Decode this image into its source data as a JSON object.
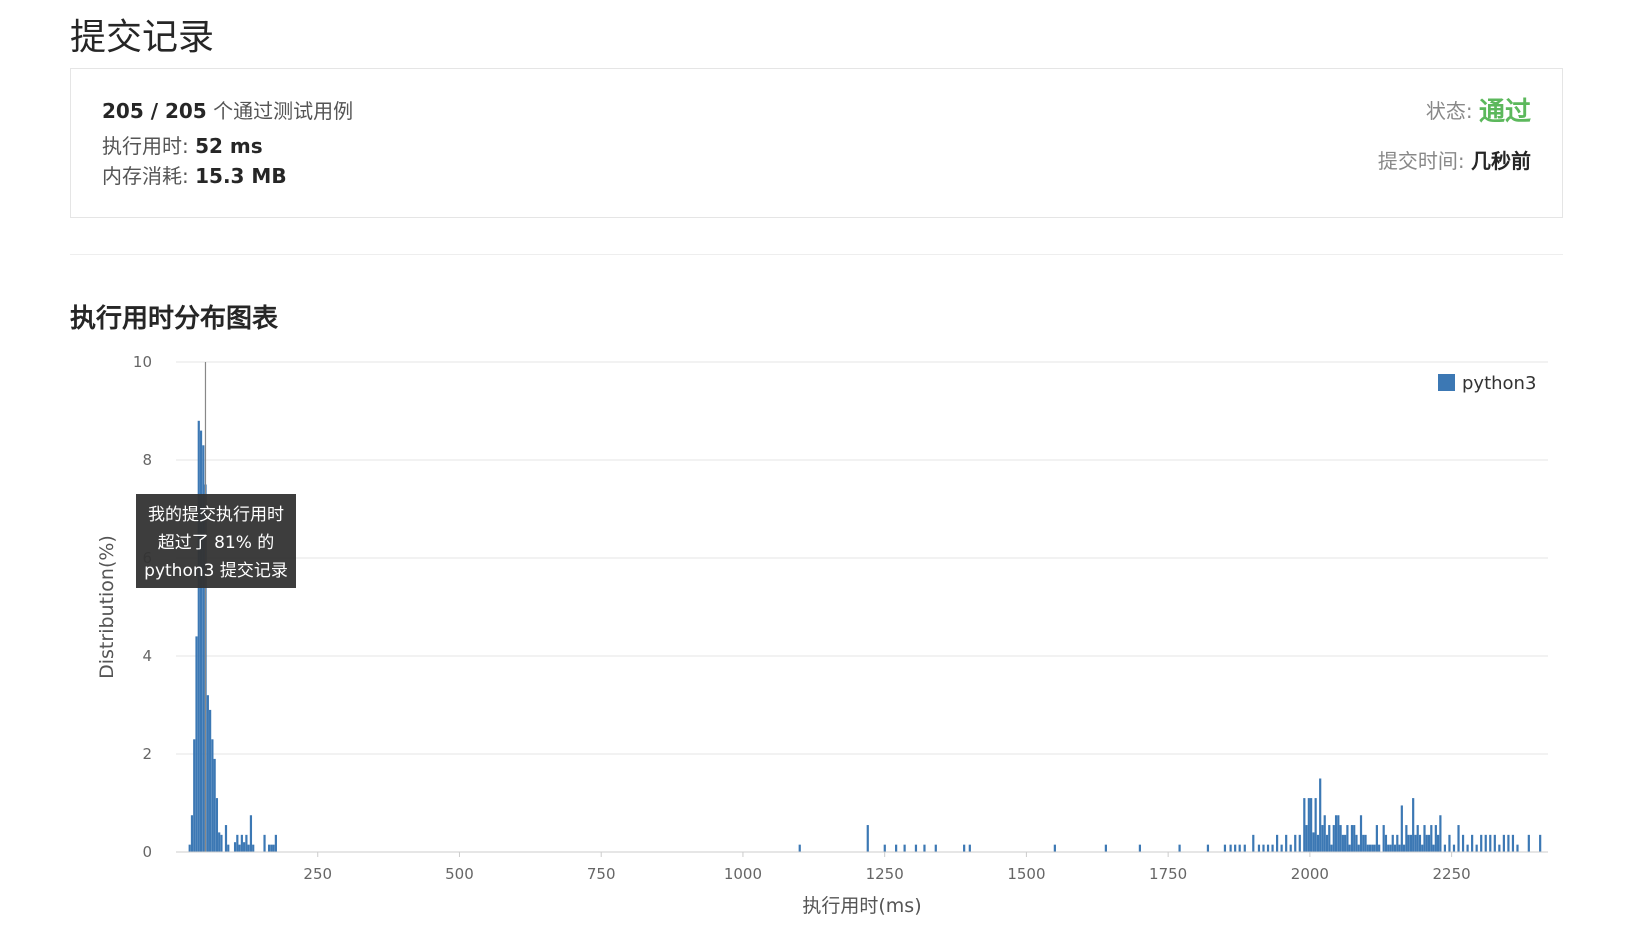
{
  "page": {
    "title": "提交记录",
    "section_title": "执行用时分布图表"
  },
  "result": {
    "cases_passed": "205 / 205",
    "cases_suffix": "个通过测试用例",
    "runtime_label": "执行用时:",
    "runtime_value": "52 ms",
    "memory_label": "内存消耗:",
    "memory_value": "15.3 MB",
    "status_label": "状态:",
    "status_value": "通过",
    "submit_time_label": "提交时间:",
    "submit_time_value": "几秒前"
  },
  "colors": {
    "bar": "#3c78b4",
    "status_pass": "#5cb85c",
    "grid": "#e6e6e6",
    "tooltip_bg": "#333333"
  },
  "chart_data": {
    "type": "bar",
    "xlabel": "执行用时(ms)",
    "ylabel": "Distribution(%)",
    "xlim": [
      0,
      2420
    ],
    "ylim": [
      0,
      10
    ],
    "x_ticks": [
      250,
      500,
      750,
      1000,
      1250,
      1500,
      1750,
      2000,
      2250
    ],
    "y_ticks": [
      0,
      2,
      4,
      6,
      8,
      10
    ],
    "grid": true,
    "legend_position": "top-right",
    "highlight_x": 52,
    "tooltip": [
      "我的提交执行用时",
      "超过了 81% 的",
      "python3 提交记录"
    ],
    "series": [
      {
        "name": "python3",
        "points": [
          [
            24,
            0.15
          ],
          [
            28,
            0.75
          ],
          [
            32,
            2.3
          ],
          [
            36,
            4.4
          ],
          [
            40,
            8.8
          ],
          [
            44,
            8.6
          ],
          [
            48,
            8.3
          ],
          [
            52,
            7.5
          ],
          [
            56,
            3.2
          ],
          [
            60,
            2.9
          ],
          [
            64,
            2.3
          ],
          [
            68,
            1.9
          ],
          [
            72,
            1.1
          ],
          [
            76,
            0.4
          ],
          [
            80,
            0.35
          ],
          [
            88,
            0.55
          ],
          [
            92,
            0.15
          ],
          [
            104,
            0.2
          ],
          [
            108,
            0.35
          ],
          [
            112,
            0.15
          ],
          [
            116,
            0.35
          ],
          [
            120,
            0.2
          ],
          [
            124,
            0.35
          ],
          [
            128,
            0.15
          ],
          [
            132,
            0.75
          ],
          [
            136,
            0.15
          ],
          [
            156,
            0.35
          ],
          [
            164,
            0.15
          ],
          [
            168,
            0.15
          ],
          [
            172,
            0.15
          ],
          [
            176,
            0.35
          ],
          [
            1100,
            0.15
          ],
          [
            1220,
            0.55
          ],
          [
            1250,
            0.15
          ],
          [
            1270,
            0.15
          ],
          [
            1285,
            0.15
          ],
          [
            1305,
            0.15
          ],
          [
            1320,
            0.15
          ],
          [
            1340,
            0.15
          ],
          [
            1390,
            0.15
          ],
          [
            1400,
            0.15
          ],
          [
            1550,
            0.15
          ],
          [
            1640,
            0.15
          ],
          [
            1700,
            0.15
          ],
          [
            1770,
            0.15
          ],
          [
            1820,
            0.15
          ],
          [
            1850,
            0.15
          ],
          [
            1860,
            0.15
          ],
          [
            1868,
            0.15
          ],
          [
            1876,
            0.15
          ],
          [
            1885,
            0.15
          ],
          [
            1900,
            0.35
          ],
          [
            1910,
            0.15
          ],
          [
            1918,
            0.15
          ],
          [
            1926,
            0.15
          ],
          [
            1934,
            0.15
          ],
          [
            1942,
            0.35
          ],
          [
            1950,
            0.15
          ],
          [
            1958,
            0.35
          ],
          [
            1966,
            0.15
          ],
          [
            1974,
            0.35
          ],
          [
            1982,
            0.35
          ],
          [
            1990,
            1.1
          ],
          [
            1994,
            0.55
          ],
          [
            1998,
            1.1
          ],
          [
            2002,
            1.1
          ],
          [
            2006,
            0.4
          ],
          [
            2010,
            1.1
          ],
          [
            2014,
            0.35
          ],
          [
            2018,
            1.5
          ],
          [
            2022,
            0.55
          ],
          [
            2026,
            0.75
          ],
          [
            2030,
            0.35
          ],
          [
            2034,
            0.55
          ],
          [
            2038,
            0.15
          ],
          [
            2042,
            0.55
          ],
          [
            2046,
            0.75
          ],
          [
            2050,
            0.75
          ],
          [
            2054,
            0.55
          ],
          [
            2058,
            0.35
          ],
          [
            2062,
            0.35
          ],
          [
            2066,
            0.55
          ],
          [
            2070,
            0.15
          ],
          [
            2074,
            0.55
          ],
          [
            2078,
            0.55
          ],
          [
            2082,
            0.35
          ],
          [
            2086,
            0.15
          ],
          [
            2090,
            0.75
          ],
          [
            2094,
            0.35
          ],
          [
            2098,
            0.35
          ],
          [
            2102,
            0.15
          ],
          [
            2106,
            0.15
          ],
          [
            2110,
            0.15
          ],
          [
            2114,
            0.15
          ],
          [
            2118,
            0.55
          ],
          [
            2122,
            0.15
          ],
          [
            2130,
            0.55
          ],
          [
            2134,
            0.35
          ],
          [
            2138,
            0.15
          ],
          [
            2142,
            0.15
          ],
          [
            2146,
            0.35
          ],
          [
            2150,
            0.15
          ],
          [
            2154,
            0.35
          ],
          [
            2158,
            0.15
          ],
          [
            2162,
            0.95
          ],
          [
            2166,
            0.15
          ],
          [
            2170,
            0.55
          ],
          [
            2174,
            0.35
          ],
          [
            2178,
            0.35
          ],
          [
            2182,
            1.1
          ],
          [
            2186,
            0.35
          ],
          [
            2190,
            0.55
          ],
          [
            2194,
            0.35
          ],
          [
            2198,
            0.15
          ],
          [
            2202,
            0.55
          ],
          [
            2206,
            0.35
          ],
          [
            2210,
            0.35
          ],
          [
            2214,
            0.55
          ],
          [
            2218,
            0.15
          ],
          [
            2222,
            0.55
          ],
          [
            2226,
            0.35
          ],
          [
            2230,
            0.75
          ],
          [
            2238,
            0.15
          ],
          [
            2246,
            0.35
          ],
          [
            2254,
            0.15
          ],
          [
            2262,
            0.55
          ],
          [
            2270,
            0.35
          ],
          [
            2278,
            0.15
          ],
          [
            2286,
            0.35
          ],
          [
            2294,
            0.15
          ],
          [
            2302,
            0.35
          ],
          [
            2310,
            0.35
          ],
          [
            2318,
            0.35
          ],
          [
            2326,
            0.35
          ],
          [
            2334,
            0.15
          ],
          [
            2342,
            0.35
          ],
          [
            2350,
            0.35
          ],
          [
            2358,
            0.35
          ],
          [
            2366,
            0.15
          ],
          [
            2386,
            0.35
          ],
          [
            2406,
            0.35
          ]
        ]
      }
    ]
  }
}
